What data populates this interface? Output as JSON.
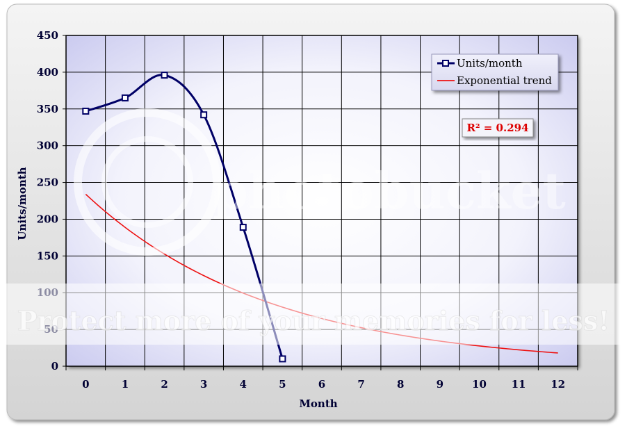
{
  "chart_data": {
    "type": "line",
    "title": "",
    "xlabel": "Month",
    "ylabel": "Units/month",
    "xlim": [
      -0.5,
      12.5
    ],
    "ylim": [
      0,
      450
    ],
    "x_ticks": [
      0,
      1,
      2,
      3,
      4,
      5,
      6,
      7,
      8,
      9,
      10,
      11,
      12
    ],
    "y_ticks": [
      0,
      50,
      100,
      150,
      200,
      250,
      300,
      350,
      400,
      450
    ],
    "grid": true,
    "legend_position": "top-right",
    "series": [
      {
        "name": "Units/month",
        "x": [
          0,
          1,
          2,
          3,
          4,
          5
        ],
        "values": [
          347,
          365,
          396,
          342,
          189,
          10
        ],
        "color": "#000066",
        "marker": "square",
        "smooth": true
      },
      {
        "name": "Exponential trend",
        "x": [
          0,
          12
        ],
        "model": "exponential",
        "values_at_ends": [
          234,
          18
        ],
        "color": "#ee1111",
        "marker": "none"
      }
    ],
    "annotations": [
      {
        "text": "R² = 0.294",
        "color": "#dd0000"
      }
    ]
  },
  "watermark": {
    "text": "Protect more of your memories for less!",
    "brand": "photobucket"
  },
  "colors": {
    "plot_edge": "#c8c8ee",
    "plot_center": "#ffffff",
    "axis_text": "#000033",
    "grid": "#000000"
  }
}
